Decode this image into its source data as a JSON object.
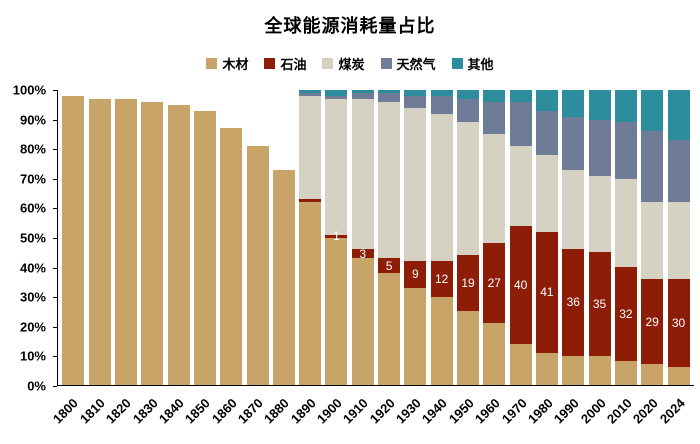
{
  "chart_data": {
    "type": "bar",
    "stacked": true,
    "percent": true,
    "title": "全球能源消耗量占比",
    "xlabel": "",
    "ylabel": "",
    "ylim": [
      0,
      100
    ],
    "grid": false,
    "legend_position": "top",
    "categories": [
      "1800",
      "1810",
      "1820",
      "1830",
      "1840",
      "1850",
      "1860",
      "1870",
      "1880",
      "1890",
      "1900",
      "1910",
      "1920",
      "1930",
      "1940",
      "1950",
      "1960",
      "1970",
      "1980",
      "1990",
      "2000",
      "2010",
      "2020",
      "2024"
    ],
    "series": [
      {
        "key": "wood",
        "name": "木材",
        "color": "#C8A468",
        "values": [
          98,
          97,
          97,
          96,
          95,
          93,
          87,
          81,
          73,
          62,
          50,
          43,
          38,
          33,
          30,
          25,
          21,
          14,
          11,
          10,
          10,
          8,
          7,
          6
        ]
      },
      {
        "key": "oil",
        "name": "石油",
        "color": "#8E1D08",
        "values": [
          0,
          0,
          0,
          0,
          0,
          0,
          0,
          0,
          0,
          1,
          1,
          3,
          5,
          9,
          12,
          19,
          27,
          40,
          41,
          36,
          35,
          32,
          29,
          30
        ]
      },
      {
        "key": "coal",
        "name": "煤炭",
        "color": "#D5D2C4",
        "values": [
          0,
          0,
          0,
          0,
          0,
          0,
          0,
          0,
          0,
          35,
          46,
          51,
          53,
          52,
          50,
          45,
          37,
          27,
          26,
          27,
          26,
          30,
          26,
          26
        ]
      },
      {
        "key": "gas",
        "name": "天然气",
        "color": "#6E7C98",
        "values": [
          0,
          0,
          0,
          0,
          0,
          0,
          0,
          0,
          0,
          1,
          1,
          2,
          3,
          4,
          6,
          8,
          11,
          15,
          15,
          18,
          19,
          19,
          24,
          21
        ]
      },
      {
        "key": "other",
        "name": "其他",
        "color": "#2D8D9D",
        "values": [
          0,
          0,
          0,
          0,
          0,
          0,
          0,
          0,
          0,
          1,
          2,
          1,
          1,
          2,
          2,
          3,
          4,
          4,
          7,
          9,
          10,
          11,
          14,
          17
        ]
      }
    ],
    "bar_labels": {
      "series_key": "oil",
      "values": [
        null,
        null,
        null,
        null,
        null,
        null,
        null,
        null,
        null,
        null,
        "1",
        "3",
        "5",
        "9",
        "12",
        "19",
        "27",
        "40",
        "41",
        "36",
        "35",
        "32",
        "29",
        "30"
      ]
    }
  },
  "y_axis": {
    "labels": [
      "100%",
      "90%",
      "80%",
      "70%",
      "60%",
      "50%",
      "40%",
      "30%",
      "20%",
      "10%",
      "0%"
    ]
  }
}
